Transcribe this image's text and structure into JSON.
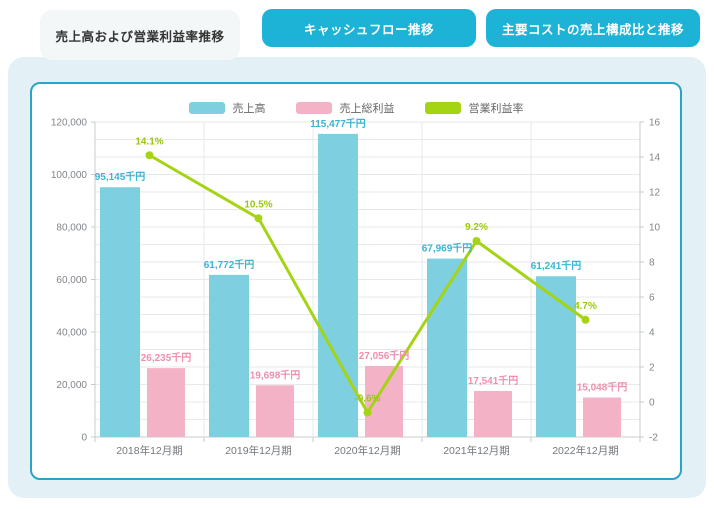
{
  "tabs": [
    {
      "label": "売上高および営業利益率推移",
      "active": true
    },
    {
      "label": "キャッシュフロー推移",
      "active": false
    },
    {
      "label": "主要コストの売上構成比と推移",
      "active": false
    }
  ],
  "colors": {
    "tab_cyan": "#1db3d6",
    "active_tab_bg": "#f3f7f8",
    "panel_bg": "#e3f0f6",
    "card_border": "#29a3c9",
    "bar_sales": "#7ecfe0",
    "bar_gross_profit": "#f4b2c6",
    "line_margin": "#a5d414",
    "label_sales": "#3cb4d4",
    "label_gross_profit": "#f08fad",
    "label_margin": "#9bc80e",
    "axis_text": "#80858a",
    "xaxis_text": "#74787c",
    "grid": "#e8e8e8",
    "axis_line": "#c9ccce"
  },
  "chart_data": {
    "type": "bar",
    "subtype": "grouped-bars-with-line",
    "categories": [
      "2018年12月期",
      "2019年12月期",
      "2020年12月期",
      "2021年12月期",
      "2022年12月期"
    ],
    "series": [
      {
        "name": "売上高",
        "type": "bar",
        "axis": "left",
        "unit": "千円",
        "values": [
          95145,
          61772,
          115477,
          67969,
          61241
        ],
        "labels": [
          "95,145千円",
          "61,772千円",
          "115,477千円",
          "67,969千円",
          "61,241千円"
        ]
      },
      {
        "name": "売上総利益",
        "type": "bar",
        "axis": "left",
        "unit": "千円",
        "values": [
          26235,
          19698,
          27056,
          17541,
          15048
        ],
        "labels": [
          "26,235千円",
          "19,698千円",
          "27,056千円",
          "17,541千円",
          "15,048千円"
        ]
      },
      {
        "name": "営業利益率",
        "type": "line",
        "axis": "right",
        "unit": "%",
        "values": [
          14.1,
          10.5,
          -0.6,
          9.2,
          4.7
        ],
        "labels": [
          "14.1%",
          "10.5%",
          "-0.6%",
          "9.2%",
          "4.7%"
        ]
      }
    ],
    "left_axis": {
      "min": 0,
      "max": 120000,
      "step": 20000,
      "tick_labels": [
        "0",
        "20,000",
        "40,000",
        "60,000",
        "80,000",
        "100,000",
        "120,000"
      ]
    },
    "right_axis": {
      "min": -2,
      "max": 16,
      "step": 2,
      "minor_step": 1,
      "tick_labels": [
        "-2",
        "0",
        "2",
        "4",
        "6",
        "8",
        "10",
        "12",
        "14",
        "16"
      ]
    },
    "grid": true,
    "legend_position": "top-center"
  }
}
